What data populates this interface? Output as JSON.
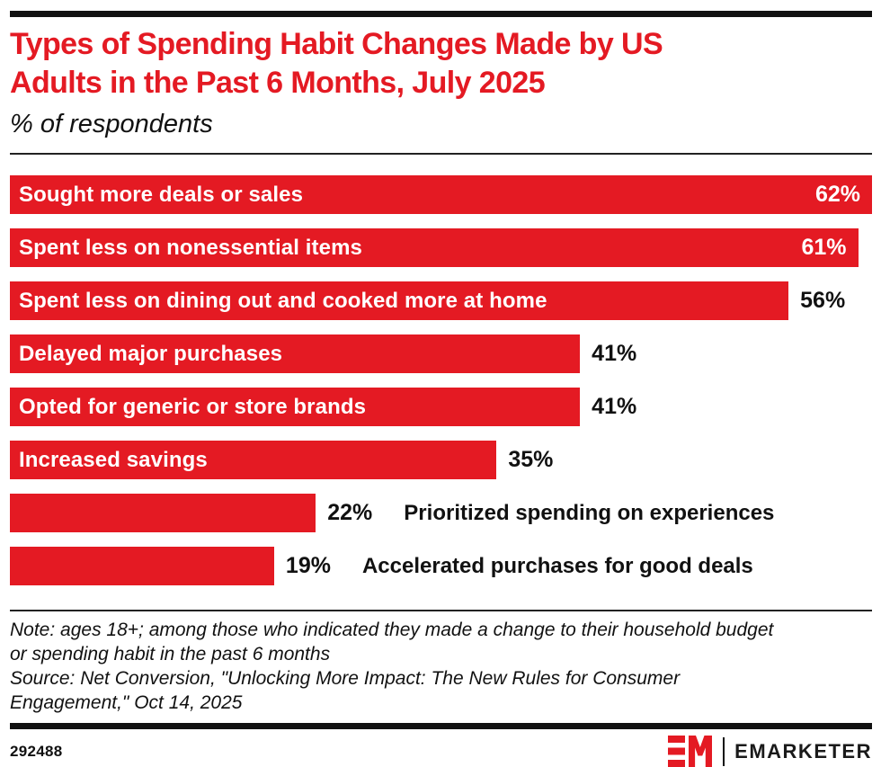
{
  "colors": {
    "red": "#e41a23",
    "black": "#111111",
    "bar_text_white": "#ffffff"
  },
  "header": {
    "title_line1": "Types of Spending Habit Changes Made by US",
    "title_line2": "Adults in the Past 6 Months, July 2025",
    "subtitle": "% of respondents"
  },
  "chart_data": {
    "type": "bar",
    "orientation": "horizontal",
    "unit": "%",
    "title": "Types of Spending Habit Changes Made by US Adults in the Past 6 Months, July 2025",
    "subtitle": "% of respondents",
    "grid": false,
    "legend": false,
    "scale_max": 62,
    "categories": [
      "Sought more deals or sales",
      "Spent less on nonessential items",
      "Spent less on dining out and cooked more at home",
      "Delayed major purchases",
      "Opted for generic or store brands",
      "Increased savings",
      "Prioritized spending on experiences",
      "Accelerated purchases for good deals"
    ],
    "values": [
      62,
      61,
      56,
      41,
      41,
      35,
      22,
      19
    ],
    "bars": [
      {
        "label": "Sought more deals or sales",
        "value": 62,
        "value_label": "62%",
        "value_position": "inside",
        "label_position": "inside"
      },
      {
        "label": "Spent less on nonessential items",
        "value": 61,
        "value_label": "61%",
        "value_position": "inside",
        "label_position": "inside"
      },
      {
        "label": "Spent less on dining out and cooked more at home",
        "value": 56,
        "value_label": "56%",
        "value_position": "outside",
        "label_position": "inside"
      },
      {
        "label": "Delayed major purchases",
        "value": 41,
        "value_label": "41%",
        "value_position": "outside",
        "label_position": "inside"
      },
      {
        "label": "Opted for generic or store brands",
        "value": 41,
        "value_label": "41%",
        "value_position": "outside",
        "label_position": "inside"
      },
      {
        "label": "Increased savings",
        "value": 35,
        "value_label": "35%",
        "value_position": "outside",
        "label_position": "inside"
      },
      {
        "label": "Prioritized spending on experiences",
        "value": 22,
        "value_label": "22%",
        "value_position": "outside",
        "label_position": "outside"
      },
      {
        "label": "Accelerated purchases for good deals",
        "value": 19,
        "value_label": "19%",
        "value_position": "outside",
        "label_position": "outside"
      }
    ]
  },
  "footer": {
    "note_line1": "Note: ages 18+; among those who indicated they made a change to their household budget",
    "note_line2": "or spending habit in the past 6 months",
    "source_line1": "Source: Net Conversion, \"Unlocking More Impact: The New Rules for Consumer",
    "source_line2": "Engagement,\" Oct 14, 2025",
    "chart_id": "292488",
    "logo_monogram": "EM",
    "brand_wordmark": "EMARKETER"
  }
}
